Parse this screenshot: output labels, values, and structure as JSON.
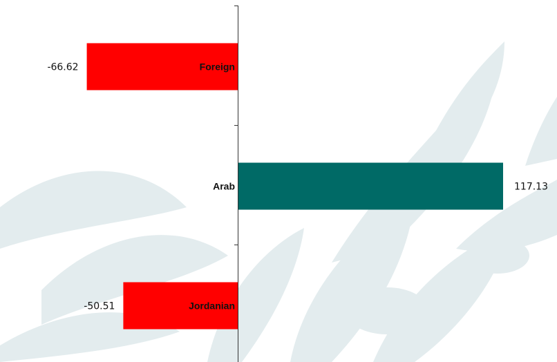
{
  "chart_data": {
    "type": "bar",
    "orientation": "horizontal",
    "categories": [
      "Foreign",
      "Arab",
      "Jordanian"
    ],
    "values": [
      -66.62,
      117.13,
      -50.51
    ],
    "value_labels": [
      "-66.62",
      "117.13",
      "-50.51"
    ],
    "xlim": [
      -105,
      135
    ],
    "colors": {
      "negative": "#ff0000",
      "positive": "#006a66",
      "axis": "#333333"
    },
    "grid": false,
    "legend": "none",
    "title": "",
    "xlabel": "",
    "ylabel": ""
  },
  "background": {
    "watermark": "olive-branch-logo",
    "color": "#e3ecee"
  }
}
